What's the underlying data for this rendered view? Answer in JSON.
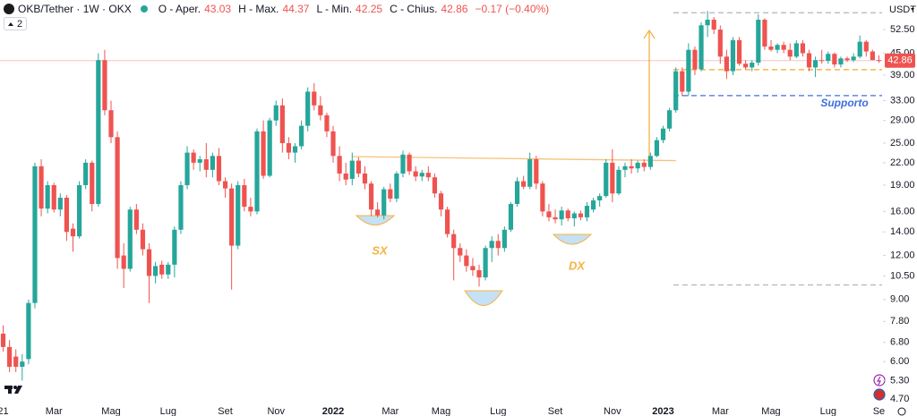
{
  "chart_data": {
    "type": "candlestick",
    "symbol": "OKB/Tether · 1W · OKX",
    "ohlc_labels": [
      "O - Aper.",
      "H - Max.",
      "L - Min.",
      "C - Chius."
    ],
    "change": "−0.17 (−0.40%)",
    "indicators_hidden": 2,
    "currency": "USDT",
    "log": true,
    "grid": false,
    "up_color": "#26a69a",
    "down_color": "#ef5350",
    "categories": [
      "21",
      null,
      null,
      null,
      null,
      null,
      null,
      null,
      "Mar",
      null,
      null,
      null,
      null,
      null,
      null,
      null,
      null,
      "Mag",
      null,
      null,
      null,
      null,
      null,
      null,
      null,
      null,
      "Lug",
      null,
      null,
      null,
      null,
      null,
      null,
      null,
      null,
      "Set",
      null,
      null,
      null,
      null,
      null,
      null,
      null,
      "Nov",
      null,
      null,
      null,
      null,
      null,
      null,
      null,
      null,
      "2022",
      null,
      null,
      null,
      null,
      null,
      null,
      null,
      null,
      "Mar",
      null,
      null,
      null,
      null,
      null,
      null,
      null,
      "Mag",
      null,
      null,
      null,
      null,
      null,
      null,
      null,
      null,
      "Lug",
      null,
      null,
      null,
      null,
      null,
      null,
      null,
      null,
      "Set",
      null,
      null,
      null,
      null,
      null,
      null,
      null,
      null,
      "Nov",
      null,
      null,
      null,
      null,
      null,
      null,
      null,
      "2023",
      null,
      null,
      null,
      null,
      null,
      null,
      null,
      null,
      "Mar",
      null,
      null,
      null,
      null,
      null,
      null,
      null,
      "Mag",
      null,
      null,
      null,
      null,
      null,
      null,
      null,
      null,
      "Lug",
      null,
      null,
      null,
      null,
      null,
      null,
      null,
      "Se"
    ],
    "open": [
      7.2,
      6.6,
      6.2,
      5.8,
      6.1,
      8.8,
      21.5,
      16.3,
      19,
      16.2,
      17.5,
      14.3,
      13.6,
      19,
      22,
      16.8,
      43,
      31,
      26,
      12,
      11,
      16.2,
      14.2,
      12.5,
      10.5,
      11.3,
      10.6,
      11.3,
      14.2,
      19,
      23.5,
      22,
      22.5,
      21,
      23,
      19.5,
      18.6,
      12.8,
      19,
      16.5,
      16,
      27,
      20.2,
      29,
      32,
      25,
      23.5,
      24.5,
      28,
      35,
      32,
      30,
      27,
      23,
      20.5,
      19.8,
      22.3,
      20.5,
      19.2,
      16.2,
      15.6,
      18.5,
      17.4,
      20.5,
      23.2,
      20.8,
      20.1,
      20.6,
      20,
      18,
      16.2,
      13.8,
      12.6,
      12,
      11.2,
      10.9,
      10.4,
      12.6,
      13.2,
      12.6,
      14.2,
      16.8,
      19.5,
      18.8,
      22.5,
      19.2,
      16,
      15.4,
      15.2,
      16.1,
      15.3,
      15.8,
      15.4,
      16.2,
      17.2,
      17.7,
      22,
      18,
      21,
      21.5,
      21.2,
      22,
      21.4,
      23,
      25.5,
      27.5,
      31,
      40,
      35,
      46,
      40.5,
      54,
      56,
      52.5,
      44,
      40,
      49,
      42,
      41,
      42.3,
      56,
      47,
      46,
      47.5,
      46,
      44,
      48,
      45,
      41,
      43,
      42.8,
      44.8,
      41.8,
      43.5,
      43,
      44,
      48.5,
      45.5,
      43.03
    ],
    "high": [
      7.6,
      6.9,
      6.5,
      6.3,
      9.0,
      22,
      22.5,
      19.5,
      19.3,
      18,
      17.8,
      14.8,
      19.5,
      22.5,
      22.3,
      45,
      46,
      33,
      27,
      13,
      16.5,
      16.8,
      14.8,
      13,
      11.5,
      11.6,
      11.5,
      14.5,
      19.5,
      24.5,
      24,
      23,
      25,
      23.5,
      24.2,
      20,
      19.2,
      19.5,
      19.8,
      17.5,
      27.5,
      29,
      29.5,
      33,
      33.5,
      26,
      25,
      29,
      36,
      37,
      34,
      30.5,
      28,
      24.5,
      22,
      23.5,
      22.8,
      21.5,
      19.5,
      17,
      18.8,
      19.2,
      20.8,
      23.8,
      23.5,
      21.5,
      21,
      21.5,
      20.5,
      18.3,
      16.5,
      14.2,
      13,
      12.5,
      11.8,
      11.3,
      12.8,
      13.6,
      13.8,
      14.5,
      17,
      20,
      20.2,
      23.5,
      23,
      19.5,
      16.8,
      16.2,
      16.5,
      16.3,
      16,
      16.1,
      17,
      17.5,
      18,
      22.5,
      24,
      21.5,
      22,
      22.5,
      22.3,
      22.5,
      23.5,
      26,
      28,
      31.5,
      41,
      41,
      48,
      47,
      55,
      59.3,
      57,
      54,
      46,
      50,
      50,
      43,
      43,
      58,
      56.5,
      49,
      48,
      48.5,
      48,
      49,
      49,
      46,
      44,
      46,
      45.5,
      45.2,
      44,
      44,
      45,
      50.5,
      49,
      46,
      44.37
    ],
    "low": [
      6.4,
      5.6,
      5.6,
      5.3,
      5.9,
      8.5,
      15.5,
      15.8,
      15.9,
      15.5,
      13.2,
      12.3,
      13.4,
      18.5,
      16,
      16.5,
      30,
      25,
      11,
      9.7,
      10.8,
      13.8,
      12,
      8.8,
      10,
      10.3,
      10.3,
      10.4,
      13.8,
      18.5,
      21,
      20.8,
      20,
      20,
      19,
      17.5,
      9.6,
      12.5,
      16,
      15.5,
      15.7,
      19.8,
      20,
      28,
      23.5,
      22.5,
      22,
      24,
      27,
      31,
      29,
      26,
      22,
      19.5,
      19,
      19,
      20,
      18.5,
      15.5,
      15.4,
      15.2,
      17,
      17,
      20,
      20.3,
      19.5,
      19.5,
      19.5,
      17.5,
      15.5,
      13.5,
      10.2,
      11.5,
      10.8,
      10.5,
      9.8,
      10.2,
      11.5,
      12,
      12.3,
      14,
      16.5,
      18.5,
      18.5,
      18.5,
      15.5,
      15,
      14.8,
      14.6,
      15,
      14.5,
      15.1,
      15,
      15.9,
      16.5,
      17.5,
      17,
      17.8,
      20,
      20.5,
      20.6,
      20.8,
      21,
      22.8,
      25,
      27,
      30.5,
      34,
      34,
      39,
      40,
      50,
      51,
      42,
      38,
      39,
      41.5,
      40.5,
      40,
      41.5,
      46,
      45.5,
      45,
      45,
      43,
      43.5,
      44,
      40,
      38.5,
      42,
      42,
      41,
      41,
      42.5,
      42.5,
      43.5,
      44,
      43,
      42.25
    ],
    "close": [
      6.6,
      5.8,
      5.8,
      6.0,
      8.8,
      21.5,
      16.3,
      19,
      16.2,
      17.5,
      14,
      13.6,
      19,
      22,
      16.8,
      43,
      31,
      26,
      11.8,
      11,
      16.2,
      14.2,
      12.5,
      10.5,
      11.2,
      10.6,
      11.3,
      14.2,
      19,
      23.5,
      22,
      22.5,
      21,
      23,
      19.5,
      18.6,
      12.8,
      19,
      16.5,
      16,
      27,
      20.2,
      29,
      32,
      25,
      23.5,
      24.5,
      28,
      35,
      32,
      30,
      27,
      23,
      20.5,
      19.7,
      22.3,
      20.5,
      19.2,
      16.2,
      15.6,
      18.5,
      17.4,
      20.5,
      23.2,
      20.8,
      20.1,
      20.6,
      20,
      18,
      16.2,
      13.8,
      12.6,
      12,
      11.2,
      10.9,
      10.4,
      12.6,
      13.2,
      12.6,
      14.2,
      16.8,
      19.5,
      18.8,
      22.5,
      19.2,
      16,
      15.4,
      15.2,
      16.1,
      15.3,
      15.8,
      15.4,
      16.6,
      17.2,
      17.7,
      22,
      18,
      21,
      21.5,
      21.2,
      22,
      21.4,
      23,
      25.5,
      27.5,
      31,
      40,
      35,
      46,
      40.5,
      54,
      56,
      52.5,
      44,
      40,
      49,
      42,
      41,
      42.3,
      56,
      47,
      46,
      47.5,
      46,
      44,
      48,
      45,
      41,
      43,
      42.8,
      44.8,
      41.8,
      43.5,
      43,
      44,
      48.5,
      45.5,
      43.03,
      42.86
    ],
    "ylim": [
      4.59,
      63.7
    ],
    "yticks": [
      {
        "value": 4.7,
        "label": "4.70"
      },
      {
        "value": 5.3,
        "label": "5.30"
      },
      {
        "value": 6,
        "label": "6.00"
      },
      {
        "value": 6.8,
        "label": "6.80"
      },
      {
        "value": 7.8,
        "label": "7.80"
      },
      {
        "value": 9,
        "label": "9.00"
      },
      {
        "value": 10.5,
        "label": "10.50"
      },
      {
        "value": 12,
        "label": "12.00"
      },
      {
        "value": 14,
        "label": "14.00"
      },
      {
        "value": 16,
        "label": "16.00"
      },
      {
        "value": 19,
        "label": "19.00"
      },
      {
        "value": 22,
        "label": "22.00"
      },
      {
        "value": 25,
        "label": "25.00"
      },
      {
        "value": 29,
        "label": "29.00"
      },
      {
        "value": 33,
        "label": "33.00"
      },
      {
        "value": 39,
        "label": "39.00"
      },
      {
        "value": 45,
        "label": "45.00"
      },
      {
        "value": 52.5,
        "label": "52.50"
      }
    ],
    "levels": [
      {
        "value": 40.4,
        "color": "#f5a623"
      },
      {
        "value": 34.1,
        "color": "#3d6fe0"
      },
      {
        "value": 58.6,
        "color": "#b2b5be"
      },
      {
        "value": 9.9,
        "color": "#b2b5be"
      }
    ],
    "trendline": {
      "x": [
        55,
        106
      ],
      "y": [
        22.9,
        22.3
      ],
      "color": "#f5c27a"
    },
    "annotations": [
      "SX",
      "DX",
      "Supporto"
    ]
  }
}
